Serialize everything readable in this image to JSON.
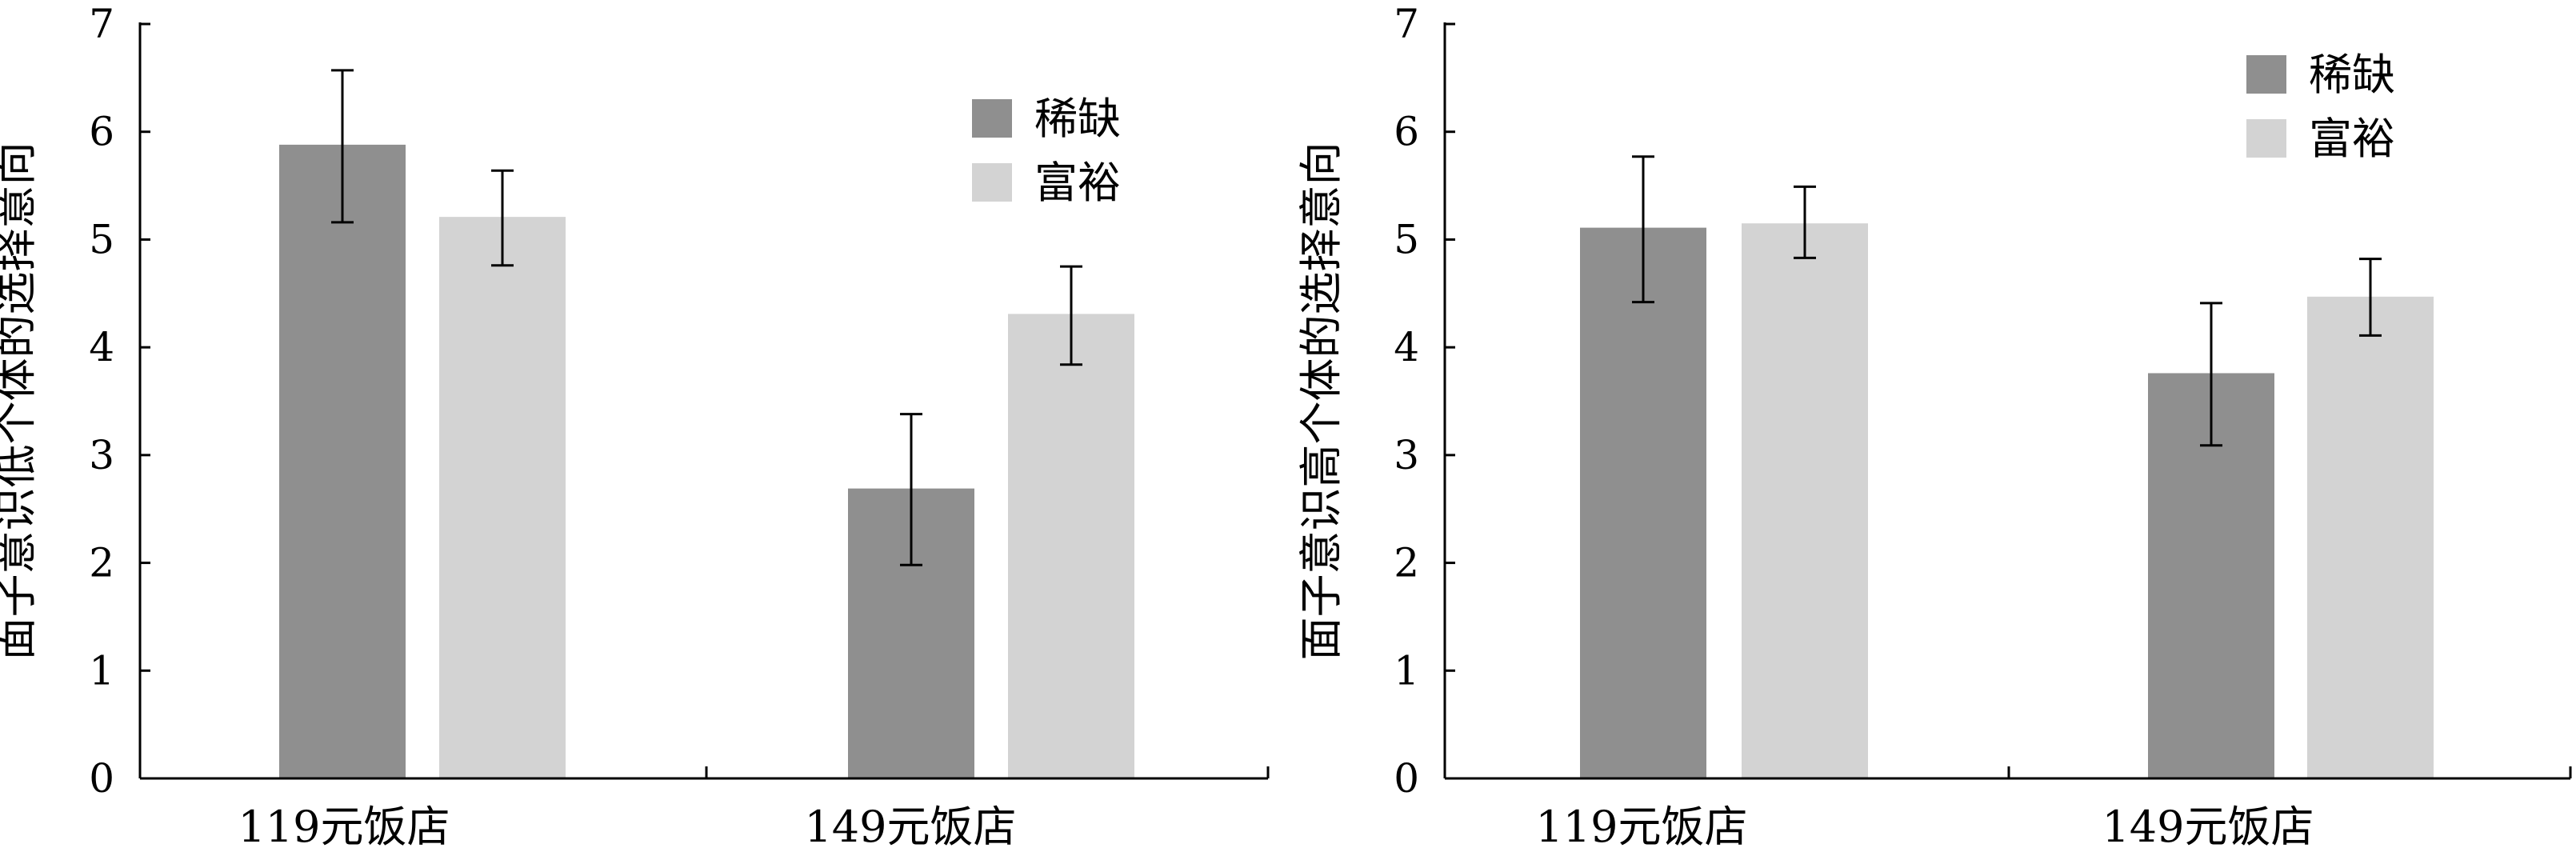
{
  "chart_data": [
    {
      "type": "bar",
      "categories": [
        "119元饭店",
        "149元饭店"
      ],
      "ylabel": "面子意识低个体的选择意向",
      "ylim": [
        0,
        7
      ],
      "yticks": [
        0,
        1,
        2,
        3,
        4,
        5,
        6,
        7
      ],
      "legend_position": "top-right",
      "series": [
        {
          "name": "稀缺",
          "color": "#8f8f8f",
          "values": [
            5.88,
            2.69
          ],
          "err_low": [
            5.16,
            1.98
          ],
          "err_high": [
            6.57,
            3.38
          ]
        },
        {
          "name": "富裕",
          "color": "#d3d3d3",
          "values": [
            5.21,
            4.31
          ],
          "err_low": [
            4.76,
            3.84
          ],
          "err_high": [
            5.64,
            4.75
          ]
        }
      ]
    },
    {
      "type": "bar",
      "categories": [
        "119元饭店",
        "149元饭店"
      ],
      "ylabel": "面子意识高个体的选择意向",
      "ylim": [
        0,
        7
      ],
      "yticks": [
        0,
        1,
        2,
        3,
        4,
        5,
        6,
        7
      ],
      "legend_position": "top-right",
      "series": [
        {
          "name": "稀缺",
          "color": "#8f8f8f",
          "values": [
            5.11,
            3.76
          ],
          "err_low": [
            4.42,
            3.09
          ],
          "err_high": [
            5.77,
            4.41
          ]
        },
        {
          "name": "富裕",
          "color": "#d3d3d3",
          "values": [
            5.15,
            4.47
          ],
          "err_low": [
            4.83,
            4.11
          ],
          "err_high": [
            5.49,
            4.82
          ]
        }
      ]
    }
  ]
}
